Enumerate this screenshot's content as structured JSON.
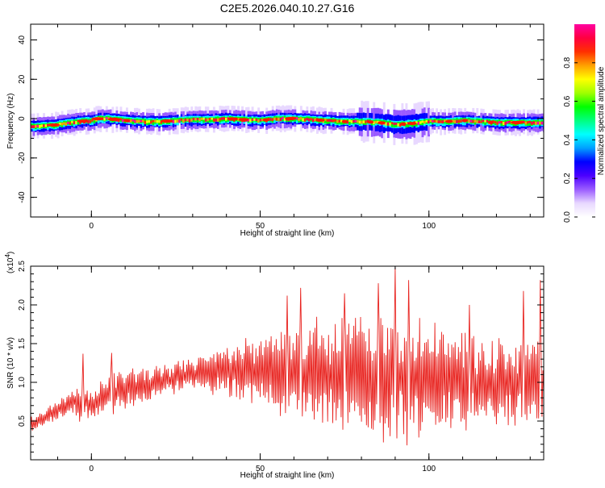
{
  "title": "C2E5.2026.040.10.27.G16",
  "chart_data": [
    {
      "type": "heatmap",
      "xlabel": "Height of straight line (km)",
      "ylabel": "Frequency (Hz)",
      "xlim": [
        -18,
        134
      ],
      "ylim": [
        -50,
        48
      ],
      "xticks": [
        0,
        50,
        100
      ],
      "yticks": [
        -40,
        -20,
        0,
        20,
        40
      ],
      "ridge": {
        "x": [
          -18,
          -12,
          -8,
          -4,
          0,
          2,
          5,
          10,
          15,
          20,
          25,
          30,
          35,
          40,
          45,
          50,
          55,
          60,
          65,
          70,
          75,
          80,
          85,
          88,
          90,
          95,
          100,
          105,
          110,
          115,
          120,
          125,
          130,
          134
        ],
        "y": [
          -4,
          -3.5,
          -2.5,
          -1.5,
          -1,
          0,
          0,
          -1,
          -1.5,
          -1.5,
          -1,
          -0.5,
          -0.5,
          0,
          -0.5,
          -1,
          0,
          0,
          -0.5,
          -1,
          -1.5,
          -1.5,
          -2,
          -2.5,
          -3,
          -2.5,
          -1.5,
          -1.5,
          -1,
          -1.5,
          -2,
          -2,
          -2,
          -2
        ]
      }
    },
    {
      "type": "line",
      "xlabel": "Height of straight line (km)",
      "ylabel": "SNR (10 * v/v)",
      "y_scale_label": "(x10",
      "y_scale_exp": "4",
      "xlim": [
        -18,
        134
      ],
      "ylim": [
        0,
        2.5
      ],
      "xticks": [
        0,
        50,
        100
      ],
      "yticks": [
        0.5,
        1.0,
        1.5,
        2.0,
        2.5
      ],
      "ytick_labels": [
        "0.5",
        "1.0",
        "1.5",
        "2.0",
        "2.5"
      ],
      "series": [
        {
          "color": "#e8221e",
          "envelope": {
            "x": [
              -18,
              -10,
              -5,
              -3,
              -1,
              0,
              5,
              10,
              20,
              30,
              40,
              50,
              55,
              60,
              70,
              80,
              90,
              100,
              110,
              120,
              130,
              134
            ],
            "center": [
              0.45,
              0.65,
              0.75,
              0.7,
              0.75,
              0.7,
              0.85,
              0.9,
              1.0,
              1.1,
              1.15,
              1.15,
              1.15,
              1.1,
              1.1,
              1.1,
              1.05,
              1.05,
              1.0,
              1.0,
              1.0,
              1.0
            ],
            "spread": [
              0.1,
              0.12,
              0.15,
              0.25,
              0.2,
              0.15,
              0.25,
              0.25,
              0.2,
              0.2,
              0.3,
              0.45,
              0.55,
              0.6,
              0.7,
              0.75,
              0.8,
              0.7,
              0.6,
              0.55,
              0.55,
              0.5
            ]
          },
          "peaks": [
            {
              "x": -2.5,
              "y": 1.37
            },
            {
              "x": 6,
              "y": 1.38
            },
            {
              "x": 58,
              "y": 2.12
            },
            {
              "x": 62,
              "y": 2.22
            },
            {
              "x": 75,
              "y": 2.15
            },
            {
              "x": 85,
              "y": 2.28
            },
            {
              "x": 90,
              "y": 2.48
            },
            {
              "x": 94,
              "y": 2.32
            },
            {
              "x": 112,
              "y": 2.0
            },
            {
              "x": 128,
              "y": 2.18
            },
            {
              "x": 133,
              "y": 2.32
            }
          ]
        }
      ]
    }
  ],
  "colorbar": {
    "label": "Normalized spectral amplitude",
    "ticks": [
      "0.0",
      "0.2",
      "0.4",
      "0.6",
      "0.8"
    ],
    "tick_values": [
      0.0,
      0.2,
      0.4,
      0.6,
      0.8
    ],
    "range": [
      0,
      1
    ],
    "colors": [
      "#ffffff",
      "#e8d8ff",
      "#9a5cff",
      "#4b00ff",
      "#0000ff",
      "#00a0ff",
      "#00ffff",
      "#00ff80",
      "#00ff00",
      "#a0ff00",
      "#ffff00",
      "#ffa000",
      "#ff3000",
      "#ff0040",
      "#ff00a0"
    ]
  }
}
